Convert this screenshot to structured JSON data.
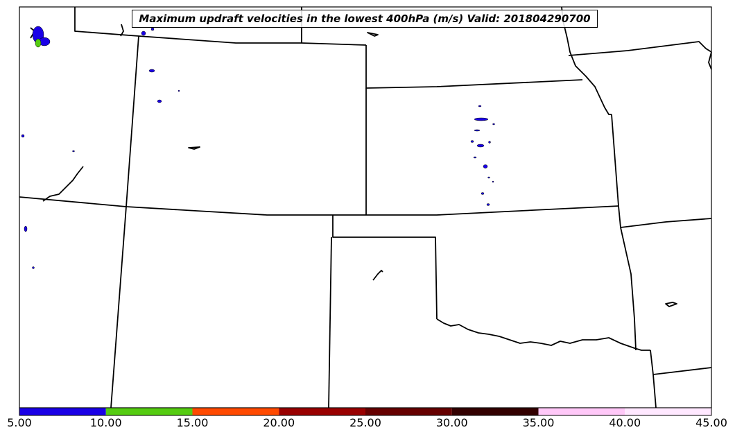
{
  "title": "Maximum updraft velocities in the lowest 400hPa (m/s) Valid: 201804290700",
  "colorbar": {
    "ticks": [
      "5.00",
      "10.00",
      "15.00",
      "20.00",
      "25.00",
      "30.00",
      "35.00",
      "40.00",
      "45.00"
    ],
    "colors": [
      "#1a00e6",
      "#55cc11",
      "#ff4a00",
      "#990000",
      "#660000",
      "#330000",
      "#ffc8f8",
      "#ffe8ff"
    ]
  },
  "map": {
    "region": "Central Plains (Colorado, Kansas, Oklahoma, Nebraska)",
    "line_color": "#000000",
    "fill_colors": [
      "#1a00e6",
      "#55cc11"
    ]
  }
}
